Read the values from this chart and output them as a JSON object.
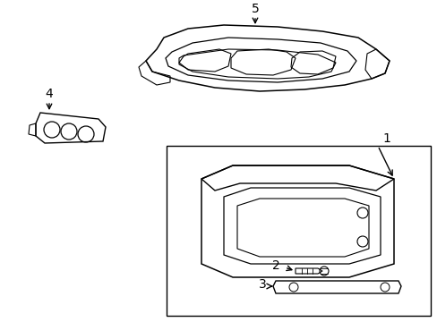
{
  "background_color": "#ffffff",
  "line_color": "#000000",
  "line_width": 1.0,
  "fig_width": 4.89,
  "fig_height": 3.6,
  "dpi": 100,
  "font_size": 10
}
